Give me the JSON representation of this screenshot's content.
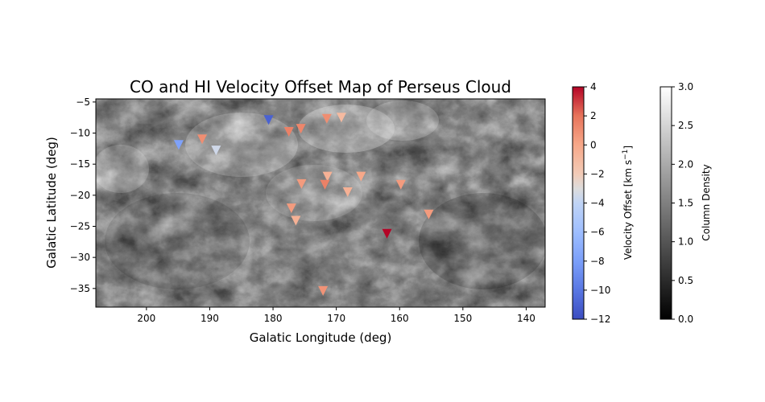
{
  "chart_data": {
    "type": "scatter",
    "title": "CO and HI Velocity Offset Map of Perseus Cloud",
    "xlabel": "Galatic Longitude (deg)",
    "ylabel": "Galatic Latitude (deg)",
    "xlim": [
      208,
      137
    ],
    "ylim": [
      -38,
      -4.5
    ],
    "x_reversed": true,
    "xticks": [
      200,
      190,
      180,
      170,
      160,
      150,
      140
    ],
    "yticks": [
      -5,
      -10,
      -15,
      -20,
      -25,
      -30,
      -35
    ],
    "background": "grayscale column density image",
    "marker": "triangle-down",
    "series": [
      {
        "points": [
          {
            "lon": 180.7,
            "lat": -7.9,
            "v": -11.0
          },
          {
            "lon": 171.5,
            "lat": -7.7,
            "v": 1.0
          },
          {
            "lon": 169.2,
            "lat": -7.5,
            "v": -1.0
          },
          {
            "lon": 175.6,
            "lat": -9.3,
            "v": 1.3
          },
          {
            "lon": 177.5,
            "lat": -9.8,
            "v": 1.5
          },
          {
            "lon": 191.2,
            "lat": -11.0,
            "v": 1.0
          },
          {
            "lon": 194.9,
            "lat": -11.9,
            "v": -7.8
          },
          {
            "lon": 189.0,
            "lat": -12.8,
            "v": -3.5
          },
          {
            "lon": 171.4,
            "lat": -17.0,
            "v": -0.5
          },
          {
            "lon": 166.1,
            "lat": -17.0,
            "v": 0.0
          },
          {
            "lon": 175.5,
            "lat": -18.2,
            "v": 0.5
          },
          {
            "lon": 171.8,
            "lat": -18.3,
            "v": 1.5
          },
          {
            "lon": 159.8,
            "lat": -18.3,
            "v": 0.5
          },
          {
            "lon": 168.2,
            "lat": -19.5,
            "v": -0.5
          },
          {
            "lon": 177.1,
            "lat": -22.1,
            "v": 0.5
          },
          {
            "lon": 176.4,
            "lat": -24.1,
            "v": -0.5
          },
          {
            "lon": 155.4,
            "lat": -23.1,
            "v": 0.5
          },
          {
            "lon": 162.0,
            "lat": -26.2,
            "v": 4.0
          },
          {
            "lon": 172.1,
            "lat": -35.4,
            "v": 0.8
          }
        ]
      }
    ],
    "colorbars": [
      {
        "label": "Velocity Offset [km s$^{-1}$]",
        "colormap": "coolwarm",
        "range": [
          -12,
          4
        ],
        "ticks": [
          4,
          2,
          0,
          -2,
          -4,
          -6,
          -8,
          -10,
          -12
        ]
      },
      {
        "label": "Column Density",
        "colormap": "gray",
        "range": [
          0.0,
          3.0
        ],
        "ticks": [
          "3.0",
          "2.5",
          "2.0",
          "1.5",
          "1.0",
          "0.5",
          "0.0"
        ]
      }
    ]
  },
  "colors": {
    "coolwarm_low": "#3b4cc0",
    "coolwarm_mid": "#dddddd",
    "coolwarm_high": "#b40426"
  }
}
